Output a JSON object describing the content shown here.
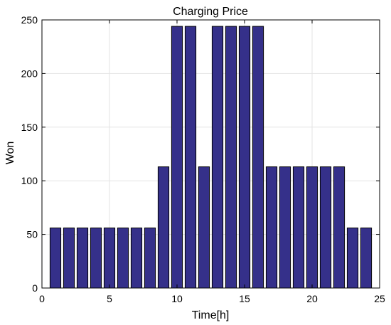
{
  "chart_data": {
    "type": "bar",
    "title": "Charging Price",
    "xlabel": "Time[h]",
    "ylabel": "Won",
    "x": [
      1,
      2,
      3,
      4,
      5,
      6,
      7,
      8,
      9,
      10,
      11,
      12,
      13,
      14,
      15,
      16,
      17,
      18,
      19,
      20,
      21,
      22,
      23,
      24
    ],
    "values": [
      56,
      56,
      56,
      56,
      56,
      56,
      56,
      56,
      113,
      244,
      244,
      113,
      244,
      244,
      244,
      244,
      113,
      113,
      113,
      113,
      113,
      113,
      56,
      56
    ],
    "xlim": [
      0,
      25
    ],
    "ylim": [
      0,
      250
    ],
    "xticks": [
      0,
      5,
      10,
      15,
      20,
      25
    ],
    "yticks": [
      0,
      50,
      100,
      150,
      200,
      250
    ],
    "grid": true,
    "bar_color": "#35308a",
    "bar_edge_color": "#000000"
  }
}
